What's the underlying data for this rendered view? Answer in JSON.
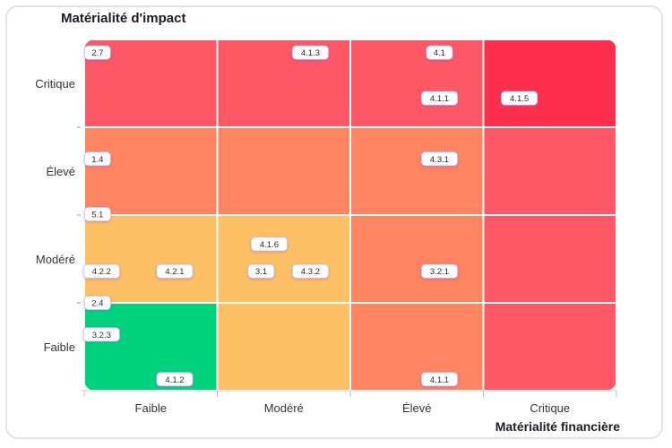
{
  "chart_data": {
    "type": "heatmap",
    "ylabel": "Matérialité d'impact",
    "xlabel": "Matérialité financière",
    "x_categories": [
      "Faible",
      "Modéré",
      "Élevé",
      "Critique"
    ],
    "y_categories": [
      "Faible",
      "Modéré",
      "Élevé",
      "Critique"
    ],
    "cell_colors": [
      [
        "#fe5766",
        "#fe5766",
        "#fe5766",
        "#fe2f4d"
      ],
      [
        "#ff8461",
        "#ff8461",
        "#ff8461",
        "#fe5766"
      ],
      [
        "#fec064",
        "#fec064",
        "#ff8461",
        "#fe5766"
      ],
      [
        "#00d27e",
        "#fec064",
        "#ff8461",
        "#fe5766"
      ]
    ],
    "grid": true,
    "badges": [
      {
        "label": "2.7",
        "x": 0.1,
        "y": 3.85
      },
      {
        "label": "4.1.3",
        "x": 1.7,
        "y": 3.85
      },
      {
        "label": "4.1",
        "x": 2.67,
        "y": 3.85
      },
      {
        "label": "4.1.1",
        "x": 2.67,
        "y": 3.33
      },
      {
        "label": "4.1.5",
        "x": 3.27,
        "y": 3.33
      },
      {
        "label": "1.4",
        "x": 0.1,
        "y": 2.64
      },
      {
        "label": "4.3.1",
        "x": 2.67,
        "y": 2.64
      },
      {
        "label": "5.1",
        "x": 0.1,
        "y": 2.01
      },
      {
        "label": "4.1.6",
        "x": 1.39,
        "y": 1.67
      },
      {
        "label": "4.2.2",
        "x": 0.13,
        "y": 1.36
      },
      {
        "label": "4.2.1",
        "x": 0.68,
        "y": 1.36
      },
      {
        "label": "3.1",
        "x": 1.33,
        "y": 1.36
      },
      {
        "label": "4.3.2",
        "x": 1.7,
        "y": 1.36
      },
      {
        "label": "3.2.1",
        "x": 2.67,
        "y": 1.36
      },
      {
        "label": "2.4",
        "x": 0.1,
        "y": 1.0
      },
      {
        "label": "3.2.3",
        "x": 0.13,
        "y": 0.64
      },
      {
        "label": "4.1.2",
        "x": 0.68,
        "y": 0.13
      },
      {
        "label": "4.1.1",
        "x": 2.67,
        "y": 0.13
      }
    ]
  }
}
